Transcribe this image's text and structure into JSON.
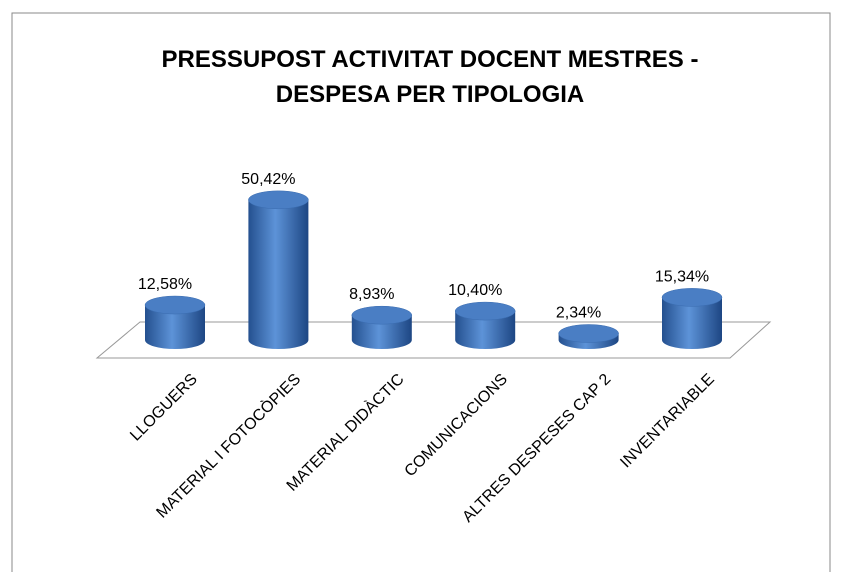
{
  "chart_data": {
    "type": "bar3d",
    "title": "PRESSUPOST ACTIVITAT DOCENT MESTRES - DESPESA PER TIPOLOGIA",
    "categories": [
      "LLOGUERS",
      "MATERIAL I FOTOCÒPIES",
      "MATERIAL DIDÀCTIC",
      "COMUNICACIONS",
      "ALTRES DESPESES CAP 2",
      "INVENTARIABLE"
    ],
    "values": [
      12.58,
      50.42,
      8.93,
      10.4,
      2.34,
      15.34
    ],
    "value_labels": [
      "12,58%",
      "50,42%",
      "8,93%",
      "10,40%",
      "2,34%",
      "15,34%"
    ],
    "color": "#4a7ec4"
  }
}
